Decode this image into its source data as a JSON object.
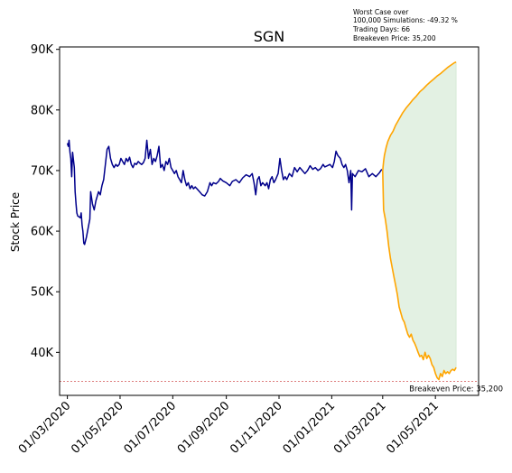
{
  "chart_data": {
    "type": "line",
    "title": "SGN",
    "xlabel": "",
    "ylabel": "Stock Price",
    "ylim": [
      32900,
      90400
    ],
    "xlim": [
      "2020-02-21",
      "2021-06-20"
    ],
    "y_ticks": [
      {
        "value": 40000,
        "label": "40K"
      },
      {
        "value": 50000,
        "label": "50K"
      },
      {
        "value": 60000,
        "label": "60K"
      },
      {
        "value": 70000,
        "label": "70K"
      },
      {
        "value": 80000,
        "label": "80K"
      },
      {
        "value": 90000,
        "label": "90K"
      }
    ],
    "x_ticks": [
      {
        "date": "2020-03-01",
        "label": "01/03/2020"
      },
      {
        "date": "2020-05-01",
        "label": "01/05/2020"
      },
      {
        "date": "2020-07-01",
        "label": "01/07/2020"
      },
      {
        "date": "2020-09-01",
        "label": "01/09/2020"
      },
      {
        "date": "2020-11-01",
        "label": "01/11/2020"
      },
      {
        "date": "2021-01-01",
        "label": "01/01/2021"
      },
      {
        "date": "2021-03-01",
        "label": "01/03/2021"
      },
      {
        "date": "2021-05-01",
        "label": "01/05/2021"
      }
    ],
    "grid": false,
    "colors": {
      "history": "#00008b",
      "projection": "#ffa500",
      "band_fill": "#e3f1e3",
      "breakeven_line": "#cc3333"
    },
    "series": [
      {
        "role": "history",
        "points": [
          [
            "2020-03-01",
            74500
          ],
          [
            "2020-03-02",
            74000
          ],
          [
            "2020-03-03",
            75000
          ],
          [
            "2020-03-04",
            73000
          ],
          [
            "2020-03-05",
            72000
          ],
          [
            "2020-03-06",
            69000
          ],
          [
            "2020-03-07",
            73000
          ],
          [
            "2020-03-09",
            70500
          ],
          [
            "2020-03-10",
            66500
          ],
          [
            "2020-03-11",
            64500
          ],
          [
            "2020-03-12",
            63000
          ],
          [
            "2020-03-13",
            62500
          ],
          [
            "2020-03-16",
            62200
          ],
          [
            "2020-03-17",
            63000
          ],
          [
            "2020-03-18",
            61000
          ],
          [
            "2020-03-19",
            60000
          ],
          [
            "2020-03-20",
            58000
          ],
          [
            "2020-03-21",
            57800
          ],
          [
            "2020-03-23",
            59000
          ],
          [
            "2020-03-25",
            60500
          ],
          [
            "2020-03-27",
            62000
          ],
          [
            "2020-03-28",
            66500
          ],
          [
            "2020-03-30",
            64500
          ],
          [
            "2020-04-01",
            63500
          ],
          [
            "2020-04-03",
            65000
          ],
          [
            "2020-04-06",
            66500
          ],
          [
            "2020-04-08",
            66000
          ],
          [
            "2020-04-10",
            67500
          ],
          [
            "2020-04-12",
            68500
          ],
          [
            "2020-04-14",
            71000
          ],
          [
            "2020-04-16",
            73500
          ],
          [
            "2020-04-18",
            74000
          ],
          [
            "2020-04-20",
            72000
          ],
          [
            "2020-04-22",
            71000
          ],
          [
            "2020-04-24",
            70500
          ],
          [
            "2020-04-26",
            71000
          ],
          [
            "2020-04-28",
            70700
          ],
          [
            "2020-04-30",
            71000
          ],
          [
            "2020-05-02",
            72000
          ],
          [
            "2020-05-04",
            71500
          ],
          [
            "2020-05-06",
            71000
          ],
          [
            "2020-05-08",
            72000
          ],
          [
            "2020-05-10",
            71500
          ],
          [
            "2020-05-12",
            72200
          ],
          [
            "2020-05-14",
            71000
          ],
          [
            "2020-05-16",
            70500
          ],
          [
            "2020-05-18",
            71200
          ],
          [
            "2020-05-20",
            71000
          ],
          [
            "2020-05-22",
            71500
          ],
          [
            "2020-05-24",
            71200
          ],
          [
            "2020-05-26",
            71000
          ],
          [
            "2020-05-28",
            71300
          ],
          [
            "2020-05-30",
            72000
          ],
          [
            "2020-06-01",
            75000
          ],
          [
            "2020-06-03",
            72000
          ],
          [
            "2020-06-05",
            73500
          ],
          [
            "2020-06-07",
            71000
          ],
          [
            "2020-06-09",
            72000
          ],
          [
            "2020-06-11",
            71500
          ],
          [
            "2020-06-13",
            72500
          ],
          [
            "2020-06-15",
            74000
          ],
          [
            "2020-06-17",
            70500
          ],
          [
            "2020-06-19",
            71000
          ],
          [
            "2020-06-21",
            70000
          ],
          [
            "2020-06-23",
            71500
          ],
          [
            "2020-06-25",
            71000
          ],
          [
            "2020-06-27",
            72000
          ],
          [
            "2020-06-29",
            70500
          ],
          [
            "2020-07-01",
            70000
          ],
          [
            "2020-07-03",
            69500
          ],
          [
            "2020-07-05",
            70000
          ],
          [
            "2020-07-07",
            69000
          ],
          [
            "2020-07-09",
            68500
          ],
          [
            "2020-07-11",
            68000
          ],
          [
            "2020-07-13",
            70000
          ],
          [
            "2020-07-15",
            68500
          ],
          [
            "2020-07-17",
            67500
          ],
          [
            "2020-07-19",
            68000
          ],
          [
            "2020-07-21",
            67000
          ],
          [
            "2020-07-23",
            67500
          ],
          [
            "2020-07-25",
            67000
          ],
          [
            "2020-07-27",
            67300
          ],
          [
            "2020-07-29",
            67000
          ],
          [
            "2020-08-01",
            66500
          ],
          [
            "2020-08-04",
            66000
          ],
          [
            "2020-08-07",
            65800
          ],
          [
            "2020-08-10",
            66500
          ],
          [
            "2020-08-13",
            68000
          ],
          [
            "2020-08-15",
            67500
          ],
          [
            "2020-08-17",
            68000
          ],
          [
            "2020-08-20",
            67800
          ],
          [
            "2020-08-23",
            68200
          ],
          [
            "2020-08-25",
            68700
          ],
          [
            "2020-08-28",
            68300
          ],
          [
            "2020-09-01",
            68000
          ],
          [
            "2020-09-05",
            67500
          ],
          [
            "2020-09-08",
            68200
          ],
          [
            "2020-09-12",
            68500
          ],
          [
            "2020-09-16",
            68000
          ],
          [
            "2020-09-20",
            68800
          ],
          [
            "2020-09-24",
            69300
          ],
          [
            "2020-09-28",
            69000
          ],
          [
            "2020-10-01",
            69500
          ],
          [
            "2020-10-03",
            68000
          ],
          [
            "2020-10-05",
            66000
          ],
          [
            "2020-10-07",
            68500
          ],
          [
            "2020-10-09",
            69000
          ],
          [
            "2020-10-11",
            67500
          ],
          [
            "2020-10-13",
            68000
          ],
          [
            "2020-10-16",
            67500
          ],
          [
            "2020-10-18",
            68000
          ],
          [
            "2020-10-20",
            67000
          ],
          [
            "2020-10-22",
            68500
          ],
          [
            "2020-10-24",
            69000
          ],
          [
            "2020-10-26",
            68000
          ],
          [
            "2020-10-28",
            68500
          ],
          [
            "2020-10-31",
            69500
          ],
          [
            "2020-11-02",
            72000
          ],
          [
            "2020-11-04",
            70000
          ],
          [
            "2020-11-06",
            68500
          ],
          [
            "2020-11-08",
            69000
          ],
          [
            "2020-11-10",
            68500
          ],
          [
            "2020-11-13",
            69500
          ],
          [
            "2020-11-16",
            69000
          ],
          [
            "2020-11-19",
            70500
          ],
          [
            "2020-11-22",
            69800
          ],
          [
            "2020-11-25",
            70500
          ],
          [
            "2020-11-28",
            70000
          ],
          [
            "2020-12-01",
            69500
          ],
          [
            "2020-12-04",
            70000
          ],
          [
            "2020-12-07",
            70800
          ],
          [
            "2020-12-10",
            70200
          ],
          [
            "2020-12-13",
            70500
          ],
          [
            "2020-12-16",
            70000
          ],
          [
            "2020-12-19",
            70300
          ],
          [
            "2020-12-22",
            71000
          ],
          [
            "2020-12-24",
            70600
          ],
          [
            "2020-12-27",
            70800
          ],
          [
            "2020-12-30",
            71000
          ],
          [
            "2021-01-02",
            70500
          ],
          [
            "2021-01-04",
            71500
          ],
          [
            "2021-01-06",
            73200
          ],
          [
            "2021-01-08",
            72500
          ],
          [
            "2021-01-11",
            72000
          ],
          [
            "2021-01-13",
            71000
          ],
          [
            "2021-01-15",
            70500
          ],
          [
            "2021-01-17",
            71000
          ],
          [
            "2021-01-19",
            70000
          ],
          [
            "2021-01-21",
            68000
          ],
          [
            "2021-01-23",
            70000
          ],
          [
            "2021-01-24",
            63500
          ],
          [
            "2021-01-25",
            69500
          ],
          [
            "2021-01-28",
            69000
          ],
          [
            "2021-02-01",
            70000
          ],
          [
            "2021-02-05",
            69800
          ],
          [
            "2021-02-09",
            70300
          ],
          [
            "2021-02-13",
            69000
          ],
          [
            "2021-02-17",
            69500
          ],
          [
            "2021-02-21",
            69000
          ],
          [
            "2021-02-25",
            69600
          ],
          [
            "2021-02-28",
            70200
          ]
        ]
      },
      {
        "role": "projection-best",
        "points": [
          [
            "2021-03-01",
            70000
          ],
          [
            "2021-03-02",
            71500
          ],
          [
            "2021-03-03",
            72500
          ],
          [
            "2021-03-05",
            73800
          ],
          [
            "2021-03-07",
            74800
          ],
          [
            "2021-03-10",
            75800
          ],
          [
            "2021-03-13",
            76500
          ],
          [
            "2021-03-16",
            77500
          ],
          [
            "2021-03-20",
            78500
          ],
          [
            "2021-03-24",
            79500
          ],
          [
            "2021-03-28",
            80300
          ],
          [
            "2021-04-01",
            81000
          ],
          [
            "2021-04-05",
            81700
          ],
          [
            "2021-04-09",
            82300
          ],
          [
            "2021-04-13",
            83000
          ],
          [
            "2021-04-17",
            83500
          ],
          [
            "2021-04-21",
            84100
          ],
          [
            "2021-04-25",
            84600
          ],
          [
            "2021-04-29",
            85100
          ],
          [
            "2021-05-03",
            85600
          ],
          [
            "2021-05-07",
            86000
          ],
          [
            "2021-05-11",
            86500
          ],
          [
            "2021-05-15",
            87000
          ],
          [
            "2021-05-19",
            87400
          ],
          [
            "2021-05-23",
            87800
          ],
          [
            "2021-05-25",
            87900
          ]
        ]
      },
      {
        "role": "projection-worst",
        "points": [
          [
            "2021-03-01",
            70000
          ],
          [
            "2021-03-02",
            63500
          ],
          [
            "2021-03-04",
            62000
          ],
          [
            "2021-03-06",
            60000
          ],
          [
            "2021-03-08",
            57500
          ],
          [
            "2021-03-10",
            55500
          ],
          [
            "2021-03-12",
            54000
          ],
          [
            "2021-03-14",
            52500
          ],
          [
            "2021-03-16",
            51000
          ],
          [
            "2021-03-18",
            49500
          ],
          [
            "2021-03-20",
            47500
          ],
          [
            "2021-03-22",
            46500
          ],
          [
            "2021-03-24",
            45500
          ],
          [
            "2021-03-26",
            45000
          ],
          [
            "2021-03-28",
            44000
          ],
          [
            "2021-03-30",
            43000
          ],
          [
            "2021-04-01",
            42500
          ],
          [
            "2021-04-03",
            43000
          ],
          [
            "2021-04-05",
            42000
          ],
          [
            "2021-04-07",
            41500
          ],
          [
            "2021-04-09",
            40800
          ],
          [
            "2021-04-11",
            40000
          ],
          [
            "2021-04-13",
            39300
          ],
          [
            "2021-04-15",
            39500
          ],
          [
            "2021-04-17",
            38800
          ],
          [
            "2021-04-19",
            40000
          ],
          [
            "2021-04-21",
            39000
          ],
          [
            "2021-04-23",
            39500
          ],
          [
            "2021-04-25",
            39000
          ],
          [
            "2021-04-27",
            38000
          ],
          [
            "2021-04-29",
            37500
          ],
          [
            "2021-05-01",
            36500
          ],
          [
            "2021-05-03",
            35800
          ],
          [
            "2021-05-05",
            35500
          ],
          [
            "2021-05-07",
            36500
          ],
          [
            "2021-05-09",
            36000
          ],
          [
            "2021-05-11",
            37000
          ],
          [
            "2021-05-13",
            36500
          ],
          [
            "2021-05-15",
            36800
          ],
          [
            "2021-05-17",
            36500
          ],
          [
            "2021-05-19",
            37000
          ],
          [
            "2021-05-21",
            37200
          ],
          [
            "2021-05-23",
            37000
          ],
          [
            "2021-05-25",
            37500
          ]
        ]
      }
    ],
    "breakeven": {
      "value": 35200,
      "label": "Breakeven Price: 35,200"
    },
    "annotation": [
      "Worst Case over",
      "100,000 Simulations: -49.32 %",
      "Trading Days: 66",
      "Breakeven Price: 35,200"
    ]
  }
}
